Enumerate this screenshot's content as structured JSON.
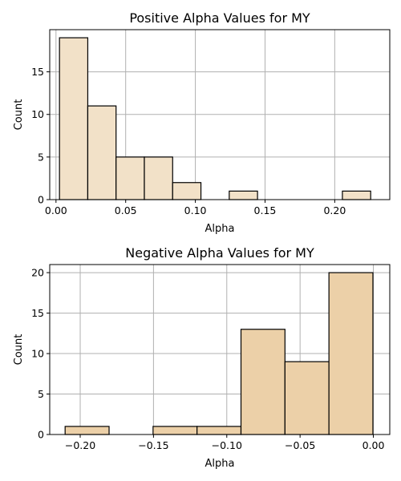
{
  "chart_data": [
    {
      "type": "bar",
      "title": "Positive Alpha Values for MY",
      "xlabel": "Alpha",
      "ylabel": "Count",
      "xlim": [
        -0.0045,
        0.2395
      ],
      "ylim": [
        0,
        19.95
      ],
      "xticks": [
        0.0,
        0.05,
        0.1,
        0.15,
        0.2
      ],
      "xtick_labels": [
        "0.00",
        "0.05",
        "0.10",
        "0.15",
        "0.20"
      ],
      "yticks": [
        0,
        5,
        10,
        15
      ],
      "ytick_labels": [
        "0",
        "5",
        "10",
        "15"
      ],
      "grid": true,
      "bar_color": "#f2e1c8",
      "bins": [
        {
          "x0": 0.0025,
          "x1": 0.0228,
          "count": 19
        },
        {
          "x0": 0.0228,
          "x1": 0.0431,
          "count": 11
        },
        {
          "x0": 0.0431,
          "x1": 0.0634,
          "count": 5
        },
        {
          "x0": 0.0634,
          "x1": 0.0837,
          "count": 5
        },
        {
          "x0": 0.0837,
          "x1": 0.104,
          "count": 2
        },
        {
          "x0": 0.104,
          "x1": 0.1243,
          "count": 0
        },
        {
          "x0": 0.1243,
          "x1": 0.1446,
          "count": 1
        },
        {
          "x0": 0.1446,
          "x1": 0.1649,
          "count": 0
        },
        {
          "x0": 0.1649,
          "x1": 0.1852,
          "count": 0
        },
        {
          "x0": 0.1852,
          "x1": 0.2055,
          "count": 0
        },
        {
          "x0": 0.2055,
          "x1": 0.2258,
          "count": 1
        }
      ]
    },
    {
      "type": "bar",
      "title": "Negative Alpha Values for MY",
      "xlabel": "Alpha",
      "ylabel": "Count",
      "xlim": [
        -0.2208,
        0.0112
      ],
      "ylim": [
        0,
        21
      ],
      "xticks": [
        -0.2,
        -0.15,
        -0.1,
        -0.05,
        0.0
      ],
      "xtick_labels": [
        "−0.20",
        "−0.15",
        "−0.10",
        "−0.05",
        "0.00"
      ],
      "yticks": [
        0,
        5,
        10,
        15,
        20
      ],
      "ytick_labels": [
        "0",
        "5",
        "10",
        "15",
        "20"
      ],
      "grid": true,
      "bar_color": "#ecd0a8",
      "bins": [
        {
          "x0": -0.2103,
          "x1": -0.1803,
          "count": 1
        },
        {
          "x0": -0.1803,
          "x1": -0.1503,
          "count": 0
        },
        {
          "x0": -0.1503,
          "x1": -0.1203,
          "count": 1
        },
        {
          "x0": -0.1203,
          "x1": -0.0903,
          "count": 1
        },
        {
          "x0": -0.0903,
          "x1": -0.0603,
          "count": 13
        },
        {
          "x0": -0.0603,
          "x1": -0.0303,
          "count": 9
        },
        {
          "x0": -0.0303,
          "x1": -0.0003,
          "count": 20
        }
      ]
    }
  ]
}
